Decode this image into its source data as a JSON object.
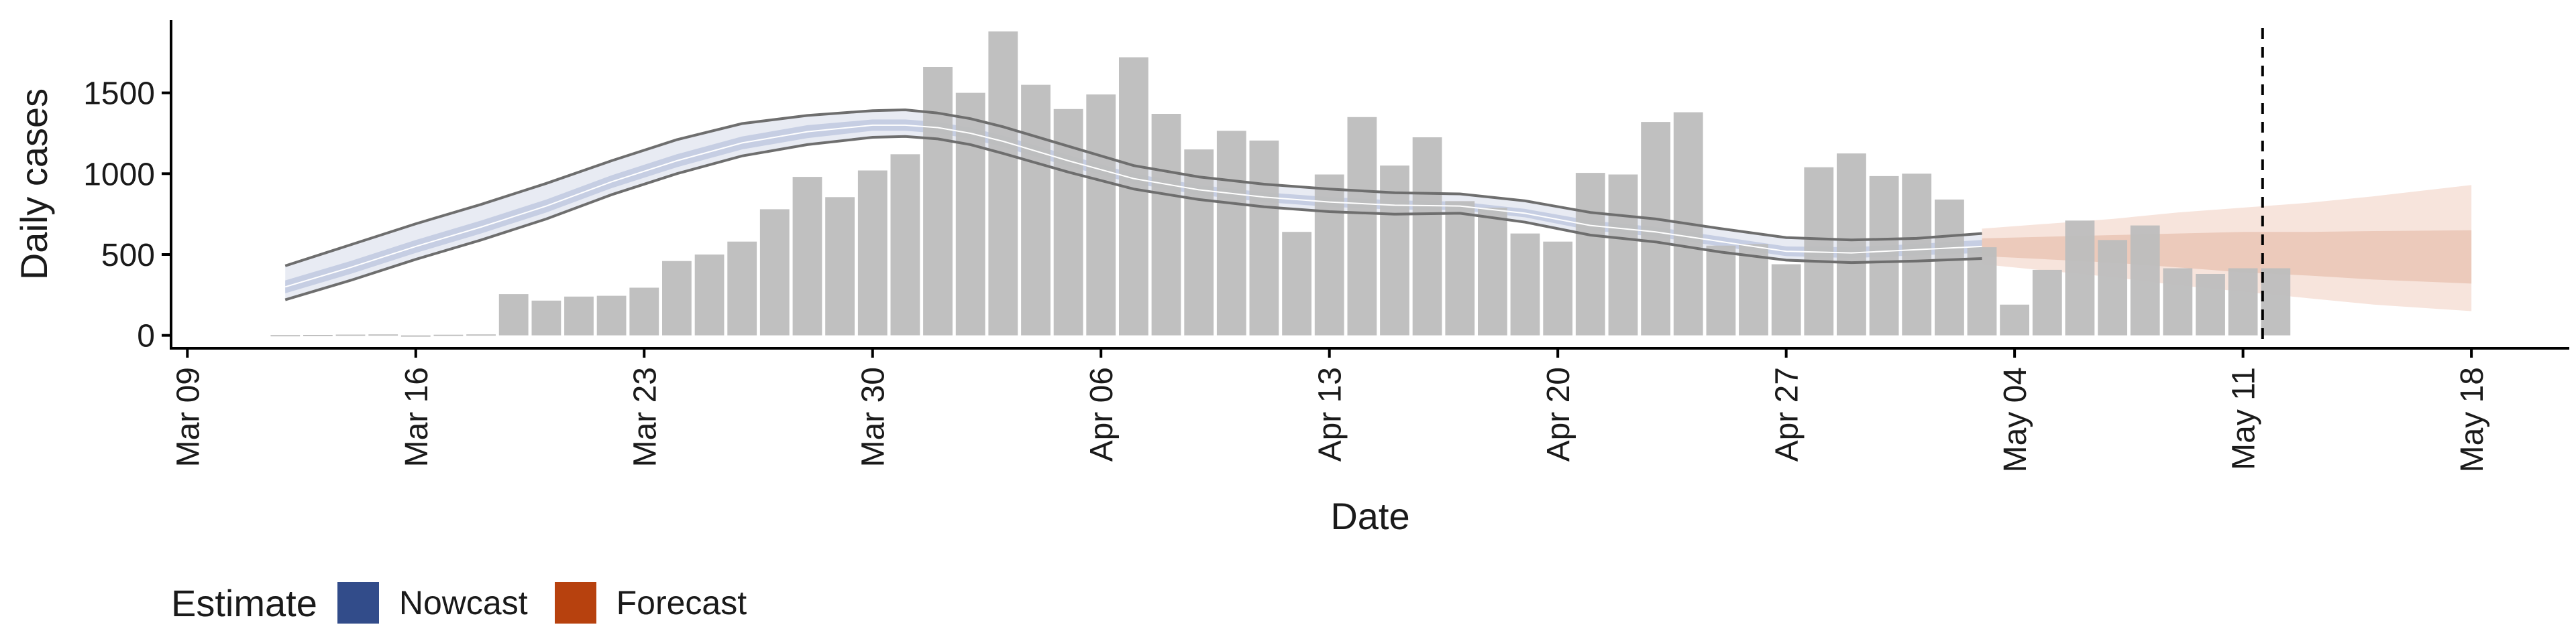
{
  "chart_data": {
    "type": "bar",
    "title": "",
    "xlabel": "Date",
    "ylabel": "Daily cases",
    "ylim": [
      -80,
      1950
    ],
    "y_ticks": [
      0,
      500,
      1000,
      1500
    ],
    "y_tick_labels": [
      "0",
      "500",
      "1000",
      "1500"
    ],
    "x_ticks": [
      0,
      7,
      14,
      21,
      28,
      35,
      42,
      49,
      56,
      63,
      70
    ],
    "x_tick_labels": [
      "Mar 09",
      "Mar 16",
      "Mar 23",
      "Mar 30",
      "Apr 06",
      "Apr 13",
      "Apr 20",
      "Apr 27",
      "May 04",
      "May 11",
      "May 18"
    ],
    "xlim": [
      -0.5,
      73
    ],
    "grid": false,
    "legend_position": "bottom-left",
    "date_origin": "Mar 09",
    "reported_cases": {
      "days": [
        3,
        4,
        5,
        6,
        7,
        8,
        9,
        10,
        11,
        12,
        13,
        14,
        15,
        16,
        17,
        18,
        19,
        20,
        21,
        22,
        23,
        24,
        25,
        26,
        27,
        28,
        29,
        30,
        31,
        32,
        33,
        34,
        35,
        36,
        37,
        38,
        39,
        40,
        41,
        42,
        43,
        44,
        45,
        46,
        47,
        48,
        49,
        50,
        51,
        52,
        53,
        54,
        55,
        56,
        57,
        58,
        59,
        60,
        61,
        62,
        63,
        64
      ],
      "values": [
        2,
        3,
        5,
        6,
        0,
        4,
        6,
        255,
        215,
        240,
        245,
        295,
        460,
        500,
        580,
        780,
        980,
        855,
        1020,
        1120,
        1660,
        1500,
        1880,
        1550,
        1400,
        1490,
        1720,
        1370,
        1150,
        1265,
        1205,
        640,
        995,
        1350,
        1050,
        1225,
        830,
        790,
        630,
        580,
        1005,
        995,
        1320,
        1380,
        555,
        565,
        440,
        1040,
        1125,
        985,
        1000,
        840,
        545,
        190,
        405,
        710,
        590,
        680,
        415,
        380,
        415,
        415
      ]
    },
    "nowcast": {
      "days": [
        3,
        5,
        7,
        9,
        11,
        13,
        15,
        17,
        19,
        21,
        22,
        23,
        24,
        25,
        27,
        29,
        31,
        33,
        35,
        37,
        39,
        41,
        43,
        45,
        47,
        49,
        51,
        53,
        55
      ],
      "median": [
        300,
        420,
        550,
        670,
        800,
        950,
        1080,
        1190,
        1260,
        1300,
        1300,
        1285,
        1250,
        1200,
        1080,
        970,
        900,
        855,
        825,
        805,
        800,
        755,
        680,
        640,
        580,
        520,
        510,
        530,
        550
      ],
      "inner_lower": [
        260,
        380,
        510,
        630,
        760,
        910,
        1040,
        1150,
        1220,
        1265,
        1265,
        1250,
        1215,
        1165,
        1045,
        940,
        870,
        825,
        795,
        778,
        775,
        730,
        650,
        610,
        550,
        490,
        478,
        495,
        510
      ],
      "inner_upper": [
        340,
        460,
        590,
        710,
        840,
        990,
        1120,
        1230,
        1300,
        1335,
        1335,
        1320,
        1285,
        1235,
        1115,
        1000,
        930,
        885,
        855,
        835,
        827,
        782,
        710,
        670,
        610,
        550,
        545,
        565,
        590
      ],
      "outer_lower": [
        220,
        340,
        470,
        590,
        720,
        870,
        1000,
        1110,
        1180,
        1225,
        1230,
        1215,
        1180,
        1125,
        1010,
        905,
        840,
        795,
        765,
        750,
        755,
        700,
        620,
        578,
        515,
        465,
        450,
        460,
        475
      ],
      "outer_upper": [
        430,
        560,
        690,
        810,
        940,
        1080,
        1210,
        1310,
        1360,
        1390,
        1395,
        1375,
        1340,
        1290,
        1170,
        1050,
        980,
        935,
        905,
        882,
        875,
        832,
        760,
        720,
        660,
        605,
        590,
        600,
        630
      ]
    },
    "forecast": {
      "days": [
        55,
        57,
        59,
        61,
        63,
        65,
        67,
        70
      ],
      "median": [
        550,
        545,
        540,
        530,
        520,
        510,
        500,
        490
      ],
      "inner_lower": [
        490,
        470,
        450,
        420,
        390,
        370,
        345,
        320
      ],
      "inner_upper": [
        600,
        610,
        620,
        630,
        640,
        640,
        645,
        650
      ],
      "outer_lower": [
        440,
        400,
        360,
        310,
        270,
        230,
        190,
        150
      ],
      "outer_upper": [
        660,
        690,
        720,
        760,
        790,
        820,
        860,
        930
      ]
    },
    "vline_day": 63.6,
    "legend": {
      "title": "Estimate",
      "entries": [
        {
          "name": "Nowcast",
          "color": "#324c8a"
        },
        {
          "name": "Forecast",
          "color": "#b7410e"
        }
      ]
    }
  },
  "colors": {
    "bar": "#bdbdbd",
    "nowcast_outer": "#e8ebf3",
    "nowcast_inner": "#c6cee3",
    "nowcast_line": "#6e6e6e",
    "forecast_outer": "#f7e4dc",
    "forecast_inner": "#eccabb",
    "axis": "#000000",
    "text": "#1a1a1a"
  }
}
